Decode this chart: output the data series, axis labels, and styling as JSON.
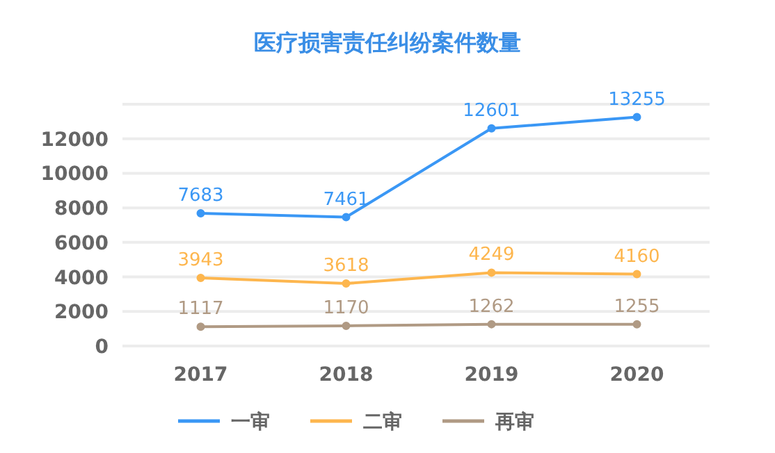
{
  "chart_data": {
    "type": "line",
    "title": "医疗损害责任纠纷案件数量",
    "categories": [
      "2017",
      "2018",
      "2019",
      "2020"
    ],
    "series": [
      {
        "name": "一审",
        "color": "#3a97f5",
        "values": [
          7683,
          7461,
          12601,
          13255
        ]
      },
      {
        "name": "二审",
        "color": "#fdb64e",
        "values": [
          3943,
          3618,
          4249,
          4160
        ]
      },
      {
        "name": "再审",
        "color": "#b09a84",
        "values": [
          1117,
          1170,
          1262,
          1255
        ]
      }
    ],
    "ylim": [
      0,
      14000
    ],
    "yticks": [
      0,
      2000,
      4000,
      6000,
      8000,
      10000,
      12000,
      {
        "value": 14000,
        "label": null
      }
    ],
    "grid": "y",
    "legend": "bottom",
    "marker": "circle",
    "line_style": "solid",
    "data_labels": true
  }
}
